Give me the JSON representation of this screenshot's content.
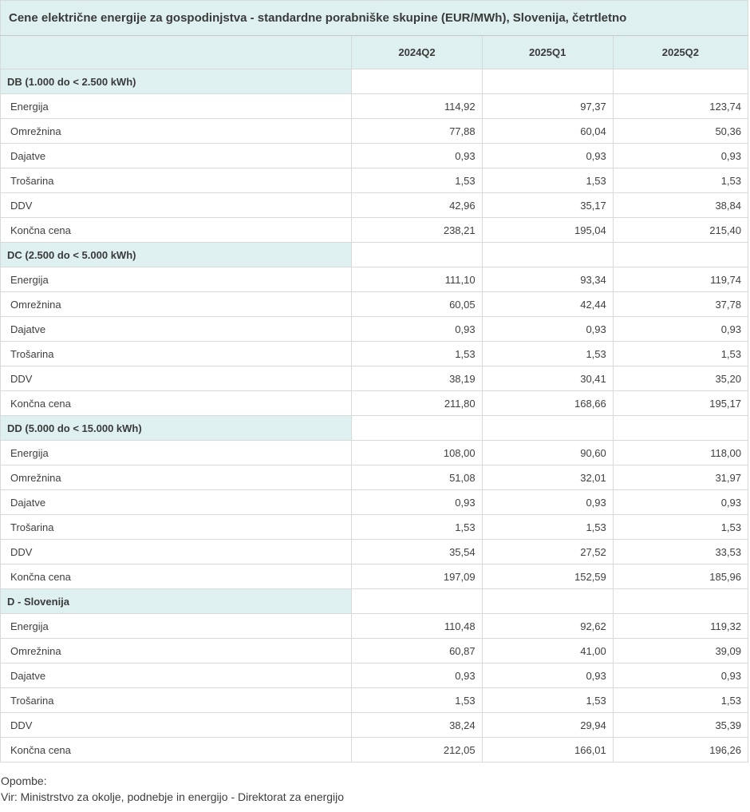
{
  "chart_data": {
    "type": "table",
    "title": "Cene električne energije za gospodinjstva - standardne porabniške skupine (EUR/MWh), Slovenija, četrtletno",
    "columns": [
      "2024Q2",
      "2025Q1",
      "2025Q2"
    ],
    "unit": "EUR/MWh",
    "groups": [
      {
        "label": "DB (1.000 do < 2.500 kWh)",
        "rows": [
          {
            "label": "Energija",
            "values": [
              "114,92",
              "97,37",
              "123,74"
            ]
          },
          {
            "label": "Omrežnina",
            "values": [
              "77,88",
              "60,04",
              "50,36"
            ]
          },
          {
            "label": "Dajatve",
            "values": [
              "0,93",
              "0,93",
              "0,93"
            ]
          },
          {
            "label": "Trošarina",
            "values": [
              "1,53",
              "1,53",
              "1,53"
            ]
          },
          {
            "label": "DDV",
            "values": [
              "42,96",
              "35,17",
              "38,84"
            ]
          },
          {
            "label": "Končna cena",
            "values": [
              "238,21",
              "195,04",
              "215,40"
            ]
          }
        ]
      },
      {
        "label": "DC (2.500 do < 5.000 kWh)",
        "rows": [
          {
            "label": "Energija",
            "values": [
              "111,10",
              "93,34",
              "119,74"
            ]
          },
          {
            "label": "Omrežnina",
            "values": [
              "60,05",
              "42,44",
              "37,78"
            ]
          },
          {
            "label": "Dajatve",
            "values": [
              "0,93",
              "0,93",
              "0,93"
            ]
          },
          {
            "label": "Trošarina",
            "values": [
              "1,53",
              "1,53",
              "1,53"
            ]
          },
          {
            "label": "DDV",
            "values": [
              "38,19",
              "30,41",
              "35,20"
            ]
          },
          {
            "label": "Končna cena",
            "values": [
              "211,80",
              "168,66",
              "195,17"
            ]
          }
        ]
      },
      {
        "label": "DD (5.000 do < 15.000 kWh)",
        "rows": [
          {
            "label": "Energija",
            "values": [
              "108,00",
              "90,60",
              "118,00"
            ]
          },
          {
            "label": "Omrežnina",
            "values": [
              "51,08",
              "32,01",
              "31,97"
            ]
          },
          {
            "label": "Dajatve",
            "values": [
              "0,93",
              "0,93",
              "0,93"
            ]
          },
          {
            "label": "Trošarina",
            "values": [
              "1,53",
              "1,53",
              "1,53"
            ]
          },
          {
            "label": "DDV",
            "values": [
              "35,54",
              "27,52",
              "33,53"
            ]
          },
          {
            "label": "Končna cena",
            "values": [
              "197,09",
              "152,59",
              "185,96"
            ]
          }
        ]
      },
      {
        "label": "D - Slovenija",
        "rows": [
          {
            "label": "Energija",
            "values": [
              "110,48",
              "92,62",
              "119,32"
            ]
          },
          {
            "label": "Omrežnina",
            "values": [
              "60,87",
              "41,00",
              "39,09"
            ]
          },
          {
            "label": "Dajatve",
            "values": [
              "0,93",
              "0,93",
              "0,93"
            ]
          },
          {
            "label": "Trošarina",
            "values": [
              "1,53",
              "1,53",
              "1,53"
            ]
          },
          {
            "label": "DDV",
            "values": [
              "38,24",
              "29,94",
              "35,39"
            ]
          },
          {
            "label": "Končna cena",
            "values": [
              "212,05",
              "166,01",
              "196,26"
            ]
          }
        ]
      }
    ]
  },
  "footer": {
    "notes_label": "Opombe:",
    "source": "Vir: Ministrstvo za okolje, podnebje in energijo - Direktorat za energijo"
  },
  "colors": {
    "header_bg": "#dff0f1",
    "text": "#3f3f3f",
    "grid_border": "#d7dadb",
    "outer_border": "#a9b0b2"
  }
}
